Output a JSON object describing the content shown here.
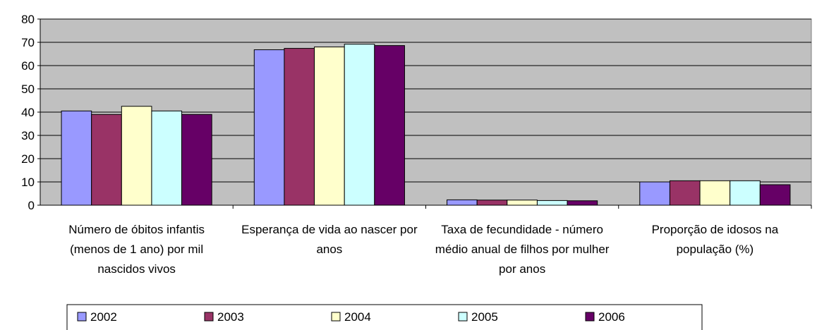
{
  "chart_data": {
    "type": "bar",
    "categories": [
      "Número de óbitos infantis (menos de 1 ano) por mil nascidos vivos",
      "Esperança de vida ao nascer por anos",
      "Taxa de fecundidade - número médio anual de filhos por mulher por anos",
      "Proporção de idosos na população (%)"
    ],
    "series": [
      {
        "name": "2002",
        "color": "#9999ff",
        "values": [
          40.5,
          66.8,
          2.3,
          10
        ]
      },
      {
        "name": "2003",
        "color": "#993366",
        "values": [
          39,
          67.4,
          2.2,
          10.5
        ]
      },
      {
        "name": "2004",
        "color": "#ffffcc",
        "values": [
          42.5,
          68,
          2.2,
          10.5
        ]
      },
      {
        "name": "2005",
        "color": "#ccffff",
        "values": [
          40.5,
          69.2,
          2,
          10.5
        ]
      },
      {
        "name": "2006",
        "color": "#660066",
        "values": [
          39,
          68.6,
          1.9,
          8.8
        ]
      }
    ],
    "ylim": [
      0,
      80
    ],
    "yticks": [
      0,
      10,
      20,
      30,
      40,
      50,
      60,
      70,
      80
    ],
    "grid": true
  }
}
